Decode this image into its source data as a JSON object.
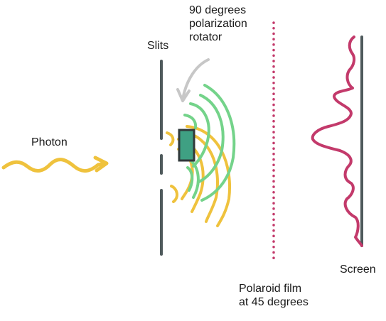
{
  "labels": {
    "rotator_line1": "90 degrees",
    "rotator_line2": "polarization",
    "rotator_line3": "rotator",
    "slits": "Slits",
    "photon": "Photon",
    "screen": "Screen",
    "film_line1": "Polaroid film",
    "film_line2": "at 45 degrees"
  },
  "colors": {
    "photon": "#efc23d",
    "rotated_wave": "#74d38a",
    "rotator_fill": "#3fa083",
    "rotator_edge": "#30383a",
    "slit_wall": "#4f5a5c",
    "film": "#c33a6b",
    "interference": "#c33a6b",
    "arrow": "#c7c7c7"
  }
}
